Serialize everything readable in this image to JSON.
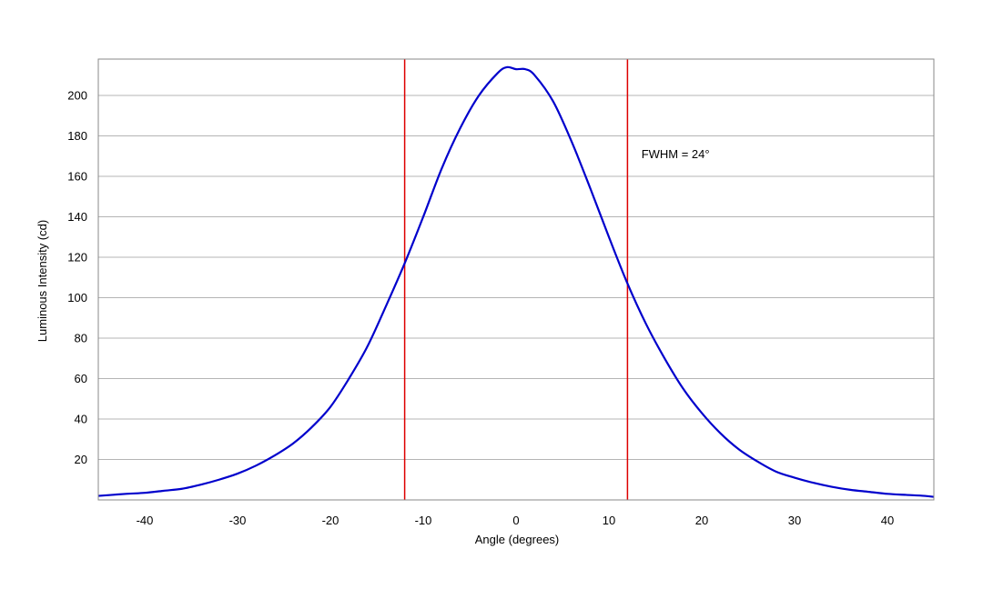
{
  "chart_data": {
    "type": "line",
    "title": "",
    "xlabel": "Angle (degrees)",
    "ylabel": "Luminous Intensity (cd)",
    "xlim": [
      -45,
      45
    ],
    "ylim": [
      0,
      218
    ],
    "x_ticks": [
      -40,
      -30,
      -20,
      -10,
      0,
      10,
      20,
      30,
      40
    ],
    "y_ticks": [
      20,
      40,
      60,
      80,
      100,
      120,
      140,
      160,
      180,
      200
    ],
    "x_tick_labels": [
      "-40",
      "-30",
      "-20",
      "-10",
      "0",
      "10",
      "20",
      "30",
      "40"
    ],
    "y_tick_labels": [
      "20",
      "40",
      "60",
      "80",
      "100",
      "120",
      "140",
      "160",
      "180",
      "200"
    ],
    "grid": "horizontal",
    "series": [
      {
        "color": "#0000cc",
        "x": [
          -45,
          -42,
          -40,
          -38,
          -36,
          -34,
          -32,
          -30,
          -28,
          -26,
          -24,
          -22,
          -20,
          -18,
          -16,
          -14,
          -12,
          -10,
          -8,
          -6,
          -4,
          -2,
          -1,
          0,
          1,
          2,
          4,
          6,
          8,
          10,
          12,
          14,
          16,
          18,
          20,
          22,
          24,
          26,
          28,
          30,
          32,
          34,
          36,
          38,
          40,
          42,
          44,
          45
        ],
        "y": [
          2,
          3,
          3.5,
          4.5,
          5.5,
          7.5,
          10,
          13,
          17,
          22,
          28,
          36,
          46,
          60,
          76,
          96,
          117,
          140,
          164,
          184,
          200,
          211,
          214,
          213,
          213,
          210,
          197,
          177,
          154,
          130,
          107,
          87,
          70,
          55,
          43,
          33,
          25,
          19,
          14,
          11,
          8.5,
          6.5,
          5,
          4,
          3,
          2.5,
          2,
          1.5
        ]
      }
    ],
    "vlines": [
      {
        "x": -12,
        "color": "#dd0000"
      },
      {
        "x": 12,
        "color": "#dd0000"
      }
    ],
    "annotations": [
      {
        "text": "FWHM = 24°",
        "x": 13.5,
        "y": 169
      }
    ],
    "colors": {
      "curve": "#0000cc",
      "vline": "#dd0000",
      "grid": "#b4b4b4",
      "frame": "#888888"
    }
  }
}
